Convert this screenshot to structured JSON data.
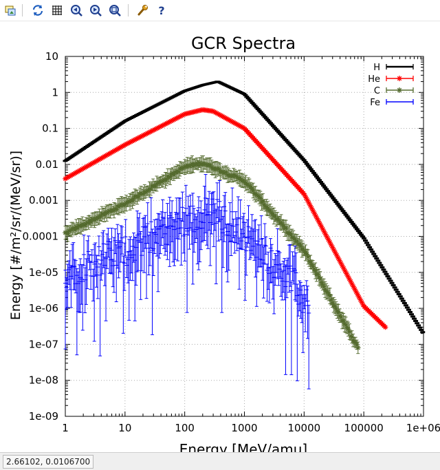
{
  "toolbar": {
    "buttons": [
      {
        "name": "export-button",
        "icon": "export-image-icon"
      },
      {
        "name": "replot-button",
        "icon": "refresh-arrows-icon"
      },
      {
        "name": "grid-button",
        "icon": "grid-icon"
      },
      {
        "name": "zoom-previous-button",
        "icon": "zoom-previous-icon"
      },
      {
        "name": "zoom-next-button",
        "icon": "zoom-next-icon"
      },
      {
        "name": "autoscale-button",
        "icon": "autoscale-icon"
      },
      {
        "name": "settings-button",
        "icon": "wrench-icon"
      },
      {
        "name": "help-button",
        "icon": "question-mark-icon"
      }
    ]
  },
  "status": {
    "mouse_coords": "2.66102, 0.0106700"
  },
  "chart_data": {
    "type": "scatter",
    "title": "GCR Spectra",
    "xlabel": "Energy [MeV/amu]",
    "ylabel": "Energy [#/m²/sr/(MeV/sr)]",
    "xscale": "log",
    "yscale": "log",
    "xlim": [
      1,
      1000000
    ],
    "ylim": [
      1e-09,
      10
    ],
    "x_tick_labels": [
      "1",
      "10",
      "100",
      "1000",
      "10000",
      "100000",
      "1e+06"
    ],
    "y_tick_labels": [
      "1e-09",
      "1e-08",
      "1e-07",
      "1e-06",
      "1e-05",
      "0.0001",
      "0.001",
      "0.01",
      "0.1",
      "1",
      "10"
    ],
    "grid": true,
    "legend_position": "top-right",
    "series": [
      {
        "name": "H",
        "color": "#000000",
        "marker": "bar",
        "x": [
          1,
          10,
          100,
          200,
          360,
          1000,
          10000,
          100000,
          1000000
        ],
        "y": [
          0.0125,
          0.16,
          1.1,
          1.6,
          2.0,
          0.9,
          0.013,
          9e-05,
          2e-07
        ],
        "x_end": 1200000
      },
      {
        "name": "He",
        "color": "#ff0000",
        "marker": "star",
        "x": [
          1,
          10,
          100,
          200,
          300,
          1000,
          10000,
          100000,
          230000
        ],
        "y": [
          0.004,
          0.035,
          0.25,
          0.33,
          0.3,
          0.1,
          0.0015,
          1.15e-06,
          3e-07
        ]
      },
      {
        "name": "C",
        "color": "#556b2f",
        "marker": "star",
        "x": [
          1,
          10,
          100,
          200,
          1000,
          10000,
          80000
        ],
        "y": [
          0.00012,
          0.0008,
          0.0085,
          0.011,
          0.0035,
          4e-05,
          8e-08
        ]
      },
      {
        "name": "Fe",
        "color": "#0000ff",
        "marker": "errorbar",
        "x": [
          1,
          10,
          100,
          300,
          1000,
          5000,
          12000
        ],
        "y": [
          1e-05,
          4e-05,
          0.0003,
          0.0005,
          0.0001,
          1e-05,
          1e-06
        ]
      }
    ]
  }
}
